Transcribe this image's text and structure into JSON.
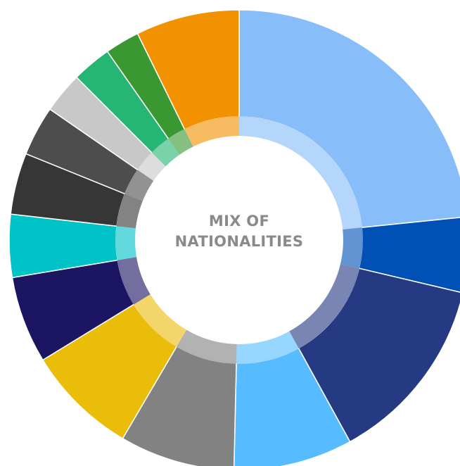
{
  "chart_data": {
    "type": "donut",
    "center_label": [
      "MIX OF",
      "NATIONALITIES"
    ],
    "start_angle_deg": 0,
    "slices": [
      {
        "value": 26.0,
        "color": "#87BDF9"
      },
      {
        "value": 5.9,
        "color": "#0050B5"
      },
      {
        "value": 14.8,
        "color": "#253A82"
      },
      {
        "value": 9.3,
        "color": "#56BCFF"
      },
      {
        "value": 9.0,
        "color": "#828282"
      },
      {
        "value": 8.7,
        "color": "#EBBD0B"
      },
      {
        "value": 6.8,
        "color": "#1B1562"
      },
      {
        "value": 4.9,
        "color": "#00C3C8"
      },
      {
        "value": 4.8,
        "color": "#363636"
      },
      {
        "value": 3.9,
        "color": "#4D4D4D"
      },
      {
        "value": 3.2,
        "color": "#C8C8C8"
      },
      {
        "value": 3.1,
        "color": "#25B673"
      },
      {
        "value": 2.7,
        "color": "#3A9832"
      },
      {
        "value": 8.1,
        "color": "#F39200"
      }
    ]
  }
}
